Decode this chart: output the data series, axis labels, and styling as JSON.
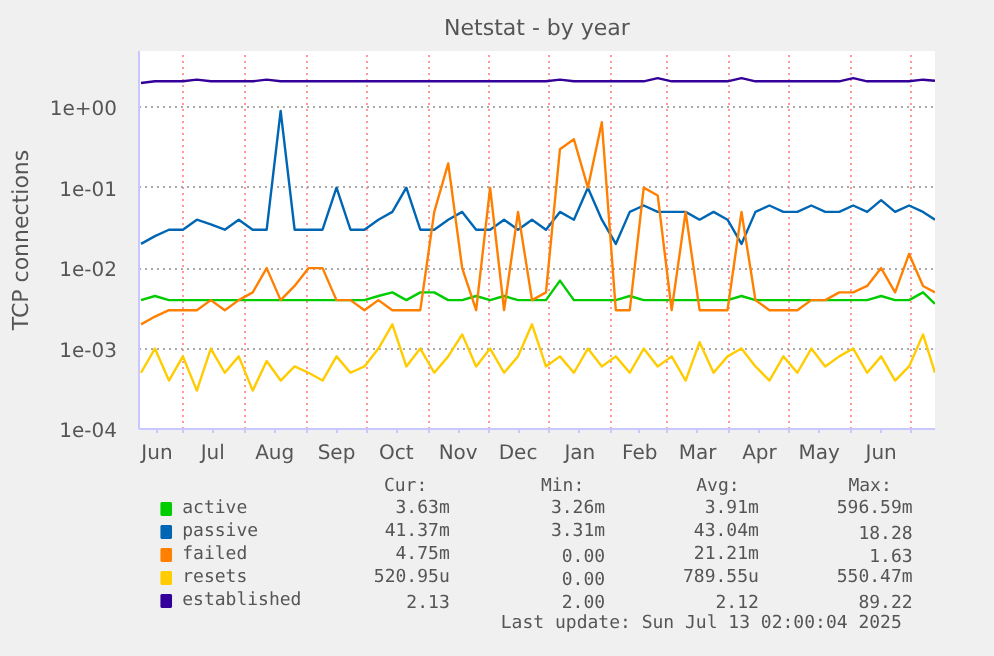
{
  "chart_data": {
    "type": "line",
    "title": "Netstat - by year",
    "ylabel": "TCP connections",
    "log": true,
    "grid": true,
    "legend": "bottom",
    "line_style": "solid",
    "marker": "none",
    "ylim": [
      0.0001,
      5
    ],
    "yticks": [
      {
        "value": 0.0001,
        "label": "1e-04"
      },
      {
        "value": 0.001,
        "label": "1e-03"
      },
      {
        "value": 0.01,
        "label": "1e-02"
      },
      {
        "value": 0.1,
        "label": "1e-01"
      },
      {
        "value": 1,
        "label": "1e+00"
      }
    ],
    "xlim": [
      "2024-06-09",
      "2025-07-13"
    ],
    "xticks": [
      {
        "value": "2024-06-18",
        "label": "Jun"
      },
      {
        "value": "2024-07-01",
        "label": null
      },
      {
        "value": "2024-07-16",
        "label": "Jul"
      },
      {
        "value": "2024-08-01",
        "label": null
      },
      {
        "value": "2024-08-16",
        "label": "Aug"
      },
      {
        "value": "2024-09-01",
        "label": null
      },
      {
        "value": "2024-09-16",
        "label": "Sep"
      },
      {
        "value": "2024-10-01",
        "label": null
      },
      {
        "value": "2024-10-16",
        "label": "Oct"
      },
      {
        "value": "2024-11-01",
        "label": null
      },
      {
        "value": "2024-11-16",
        "label": "Nov"
      },
      {
        "value": "2024-12-01",
        "label": null
      },
      {
        "value": "2024-12-16",
        "label": "Dec"
      },
      {
        "value": "2025-01-01",
        "label": null
      },
      {
        "value": "2025-01-16",
        "label": "Jan"
      },
      {
        "value": "2025-02-01",
        "label": null
      },
      {
        "value": "2025-02-15",
        "label": "Feb"
      },
      {
        "value": "2025-03-01",
        "label": null
      },
      {
        "value": "2025-03-16",
        "label": "Mar"
      },
      {
        "value": "2025-04-01",
        "label": null
      },
      {
        "value": "2025-04-16",
        "label": "Apr"
      },
      {
        "value": "2025-05-01",
        "label": null
      },
      {
        "value": "2025-05-16",
        "label": "May"
      },
      {
        "value": "2025-06-01",
        "label": null
      },
      {
        "value": "2025-06-16",
        "label": "Jun"
      },
      {
        "value": "2025-07-01",
        "label": null
      }
    ],
    "x": [
      "2024-06-10",
      "2024-06-17",
      "2024-06-24",
      "2024-07-01",
      "2024-07-08",
      "2024-07-15",
      "2024-07-22",
      "2024-07-29",
      "2024-08-05",
      "2024-08-12",
      "2024-08-19",
      "2024-08-26",
      "2024-09-02",
      "2024-09-09",
      "2024-09-16",
      "2024-09-23",
      "2024-09-30",
      "2024-10-07",
      "2024-10-14",
      "2024-10-21",
      "2024-10-28",
      "2024-11-04",
      "2024-11-11",
      "2024-11-18",
      "2024-11-25",
      "2024-12-02",
      "2024-12-09",
      "2024-12-16",
      "2024-12-23",
      "2024-12-30",
      "2025-01-06",
      "2025-01-13",
      "2025-01-20",
      "2025-01-27",
      "2025-02-03",
      "2025-02-10",
      "2025-02-17",
      "2025-02-24",
      "2025-03-03",
      "2025-03-10",
      "2025-03-17",
      "2025-03-24",
      "2025-03-31",
      "2025-04-07",
      "2025-04-14",
      "2025-04-21",
      "2025-04-28",
      "2025-05-05",
      "2025-05-12",
      "2025-05-19",
      "2025-05-26",
      "2025-06-02",
      "2025-06-09",
      "2025-06-16",
      "2025-06-23",
      "2025-06-30",
      "2025-07-07",
      "2025-07-13"
    ],
    "series": [
      {
        "name": "active",
        "color": "#00cc00",
        "values": [
          0.004,
          0.0045,
          0.004,
          0.004,
          0.004,
          0.004,
          0.004,
          0.004,
          0.004,
          0.004,
          0.004,
          0.004,
          0.004,
          0.004,
          0.004,
          0.004,
          0.004,
          0.0045,
          0.005,
          0.004,
          0.005,
          0.005,
          0.004,
          0.004,
          0.0045,
          0.004,
          0.0045,
          0.004,
          0.004,
          0.004,
          0.007,
          0.004,
          0.004,
          0.004,
          0.004,
          0.0045,
          0.004,
          0.004,
          0.004,
          0.004,
          0.004,
          0.004,
          0.004,
          0.0045,
          0.004,
          0.004,
          0.004,
          0.004,
          0.004,
          0.004,
          0.004,
          0.004,
          0.004,
          0.0045,
          0.004,
          0.004,
          0.005,
          0.0036
        ]
      },
      {
        "name": "passive",
        "color": "#0066b3",
        "values": [
          0.02,
          0.025,
          0.03,
          0.03,
          0.04,
          0.035,
          0.03,
          0.04,
          0.03,
          0.03,
          0.9,
          0.03,
          0.03,
          0.03,
          0.1,
          0.03,
          0.03,
          0.04,
          0.05,
          0.1,
          0.03,
          0.03,
          0.04,
          0.05,
          0.03,
          0.03,
          0.04,
          0.03,
          0.04,
          0.03,
          0.05,
          0.04,
          0.1,
          0.04,
          0.02,
          0.05,
          0.06,
          0.05,
          0.05,
          0.05,
          0.04,
          0.05,
          0.04,
          0.02,
          0.05,
          0.06,
          0.05,
          0.05,
          0.06,
          0.05,
          0.05,
          0.06,
          0.05,
          0.07,
          0.05,
          0.06,
          0.05,
          0.04
        ]
      },
      {
        "name": "failed",
        "color": "#ff8000",
        "values": [
          0.002,
          0.0025,
          0.003,
          0.003,
          0.003,
          0.004,
          0.003,
          0.004,
          0.005,
          0.01,
          0.004,
          0.006,
          0.01,
          0.01,
          0.004,
          0.004,
          0.003,
          0.004,
          0.003,
          0.003,
          0.003,
          0.05,
          0.2,
          0.01,
          0.003,
          0.1,
          0.003,
          0.05,
          0.004,
          0.005,
          0.3,
          0.4,
          0.1,
          0.65,
          0.003,
          0.003,
          0.1,
          0.08,
          0.003,
          0.05,
          0.003,
          0.003,
          0.003,
          0.05,
          0.004,
          0.003,
          0.003,
          0.003,
          0.004,
          0.004,
          0.005,
          0.005,
          0.006,
          0.01,
          0.005,
          0.015,
          0.006,
          0.005
        ]
      },
      {
        "name": "resets",
        "color": "#ffcc00",
        "values": [
          0.0005,
          0.001,
          0.0004,
          0.0008,
          0.0003,
          0.001,
          0.0005,
          0.0008,
          0.0003,
          0.0007,
          0.0004,
          0.0006,
          0.0005,
          0.0004,
          0.0008,
          0.0005,
          0.0006,
          0.001,
          0.002,
          0.0006,
          0.001,
          0.0005,
          0.0008,
          0.0015,
          0.0006,
          0.001,
          0.0005,
          0.0008,
          0.002,
          0.0006,
          0.0008,
          0.0005,
          0.001,
          0.0006,
          0.0008,
          0.0005,
          0.001,
          0.0006,
          0.0008,
          0.0004,
          0.0012,
          0.0005,
          0.0008,
          0.001,
          0.0006,
          0.0004,
          0.0008,
          0.0005,
          0.001,
          0.0006,
          0.0008,
          0.001,
          0.0005,
          0.0008,
          0.0004,
          0.0006,
          0.0015,
          0.0005
        ]
      },
      {
        "name": "established",
        "color": "#330099",
        "values": [
          2.0,
          2.1,
          2.1,
          2.1,
          2.2,
          2.1,
          2.1,
          2.1,
          2.1,
          2.2,
          2.1,
          2.1,
          2.1,
          2.1,
          2.1,
          2.1,
          2.1,
          2.1,
          2.1,
          2.1,
          2.1,
          2.1,
          2.1,
          2.1,
          2.1,
          2.1,
          2.1,
          2.1,
          2.1,
          2.1,
          2.2,
          2.1,
          2.1,
          2.1,
          2.1,
          2.1,
          2.1,
          2.3,
          2.1,
          2.1,
          2.1,
          2.1,
          2.1,
          2.3,
          2.1,
          2.1,
          2.1,
          2.1,
          2.1,
          2.1,
          2.1,
          2.3,
          2.1,
          2.1,
          2.1,
          2.1,
          2.2,
          2.13
        ]
      }
    ],
    "annotations": [
      "Cur:",
      "Min:",
      "Avg:",
      "Max:",
      "3.63m",
      "3.26m",
      "3.91m",
      "596.59m",
      "41.37m",
      "3.31m",
      "43.04m",
      "18.28",
      "4.75m",
      "0.00",
      "21.21m",
      "1.63",
      "520.95u",
      "0.00",
      "789.55u",
      "550.47m",
      "2.13",
      "2.00",
      "2.12",
      "89.22",
      "Last update:  Sun Jul 13 02:00:04 2025"
    ]
  }
}
